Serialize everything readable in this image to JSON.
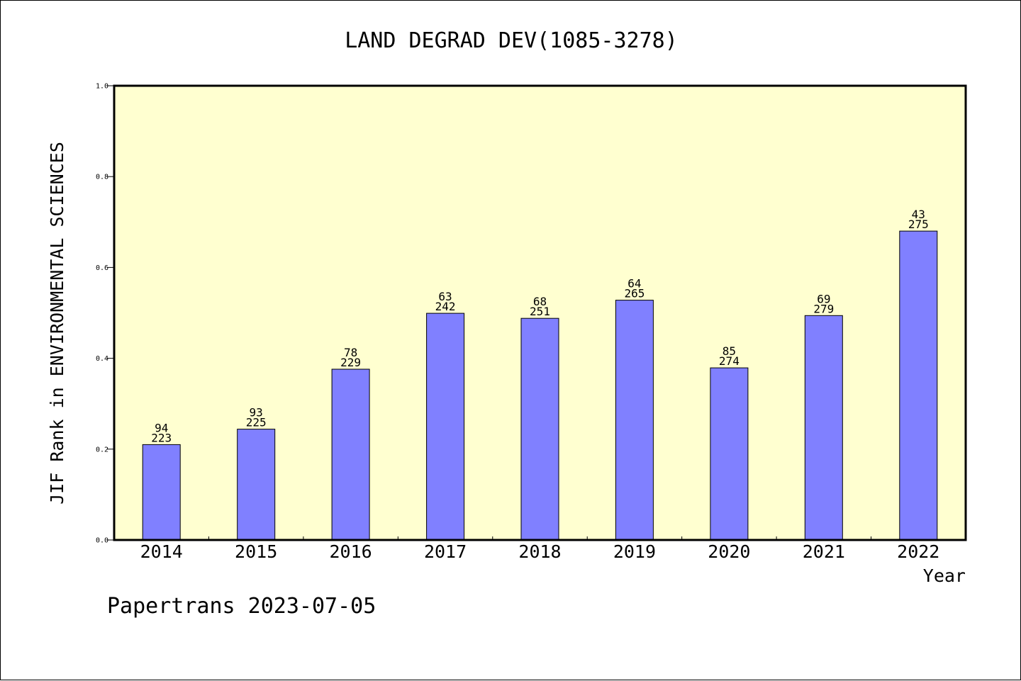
{
  "footer_text": "Papertrans 2023-07-05",
  "chart_data": {
    "type": "bar",
    "title": "LAND DEGRAD DEV(1085-3278)",
    "xlabel": "Year",
    "ylabel": "JIF Rank in ENVIRONMENTAL SCIENCES",
    "ylim": [
      0,
      1.0
    ],
    "yticks": [
      "0.0",
      "0.2",
      "0.4",
      "0.6",
      "0.8",
      "1.0"
    ],
    "grid": false,
    "plot_background": "#FFFFD0",
    "bar_color": "#8080FF",
    "categories": [
      "2014",
      "2015",
      "2016",
      "2017",
      "2018",
      "2019",
      "2020",
      "2021",
      "2022"
    ],
    "values": [
      0.21,
      0.244,
      0.376,
      0.499,
      0.488,
      0.528,
      0.379,
      0.494,
      0.68
    ],
    "rank": [
      "94",
      "93",
      "78",
      "63",
      "68",
      "64",
      "85",
      "69",
      "43"
    ],
    "total": [
      "223",
      "225",
      "229",
      "242",
      "251",
      "265",
      "274",
      "279",
      "275"
    ]
  }
}
